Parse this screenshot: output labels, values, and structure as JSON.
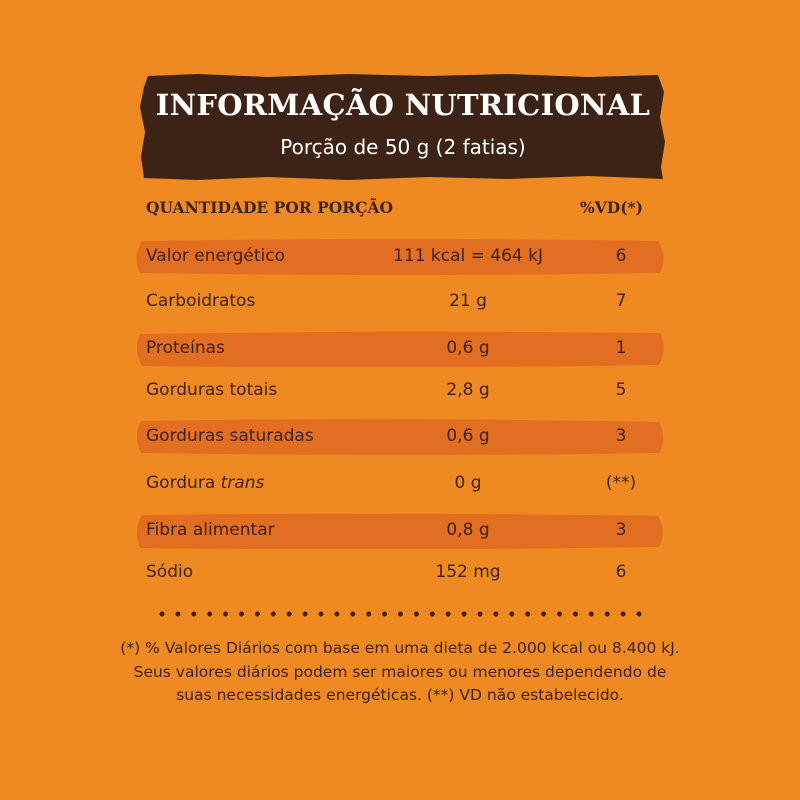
{
  "header": {
    "title": "INFORMAÇÃO NUTRICIONAL",
    "subtitle": "Porção de 50 g (2 fatias)"
  },
  "columns": {
    "quantity_label": "QUANTIDADE POR PORÇÃO",
    "dv_label": "%VD(*)"
  },
  "rows": [
    {
      "name": "Valor energético",
      "amount": "111 kcal = 464 kJ",
      "dv": "6",
      "highlighted": true
    },
    {
      "name": "Carboidratos",
      "amount": "21 g",
      "dv": "7",
      "highlighted": false
    },
    {
      "name": "Proteínas",
      "amount": "0,6 g",
      "dv": "1",
      "highlighted": true
    },
    {
      "name": "Gorduras totais",
      "amount": "2,8 g",
      "dv": "5",
      "highlighted": false
    },
    {
      "name": "Gorduras saturadas",
      "amount": "0,6 g",
      "dv": "3",
      "highlighted": true
    },
    {
      "name_prefix": "Gordura ",
      "name_italic": "trans",
      "amount": "0 g",
      "dv": "(**)",
      "highlighted": false
    },
    {
      "name": "Fibra alimentar",
      "amount": "0,8 g",
      "dv": "3",
      "highlighted": true
    },
    {
      "name": "Sódio",
      "amount": "152 mg",
      "dv": "6",
      "highlighted": false
    }
  ],
  "footnote": "(*) % Valores Diários com base em uma dieta de 2.000 kcal ou 8.400 kJ. Seus valores diários podem ser maiores ou menores dependendo de suas necessidades energéticas. (**) VD não estabelecido.",
  "colors": {
    "background": "#EF8A23",
    "header_bg": "#3D2316",
    "row_highlight": "#E26E22",
    "text": "#3D2316"
  }
}
